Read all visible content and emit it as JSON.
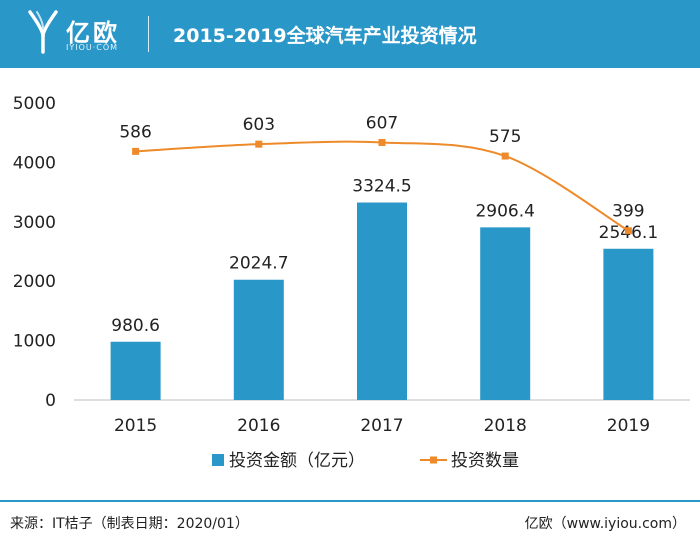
{
  "header": {
    "logo_cn": "亿欧",
    "logo_en": "IYIOU·COM",
    "title": "2015-2019全球汽车产业投资情况"
  },
  "colors": {
    "header_bg": "#2a97c9",
    "bar": "#2a97c9",
    "line": "#ee8a2a"
  },
  "chart_data": {
    "type": "bar",
    "title": "2015-2019全球汽车产业投资情况",
    "categories": [
      "2015",
      "2016",
      "2017",
      "2018",
      "2019"
    ],
    "ylim": [
      0,
      5000
    ],
    "yticks": [
      "0",
      "1000",
      "2000",
      "3000",
      "4000",
      "5000"
    ],
    "grid": false,
    "legend_position": "bottom",
    "series": [
      {
        "name": "投资金额（亿元）",
        "kind": "bar",
        "values": [
          980.6,
          2024.7,
          3324.5,
          2906.4,
          2546.1
        ],
        "labels": [
          "980.6",
          "2024.7",
          "3324.5",
          "2906.4",
          "2546.1"
        ]
      },
      {
        "name": "投资数量",
        "kind": "line",
        "values": [
          586,
          603,
          607,
          575,
          399
        ],
        "labels": [
          "586",
          "603",
          "607",
          "575",
          "399"
        ]
      }
    ]
  },
  "footer": {
    "source": "来源：IT桔子（制表日期：2020/01）",
    "site": "亿欧（www.iyiou.com）"
  }
}
